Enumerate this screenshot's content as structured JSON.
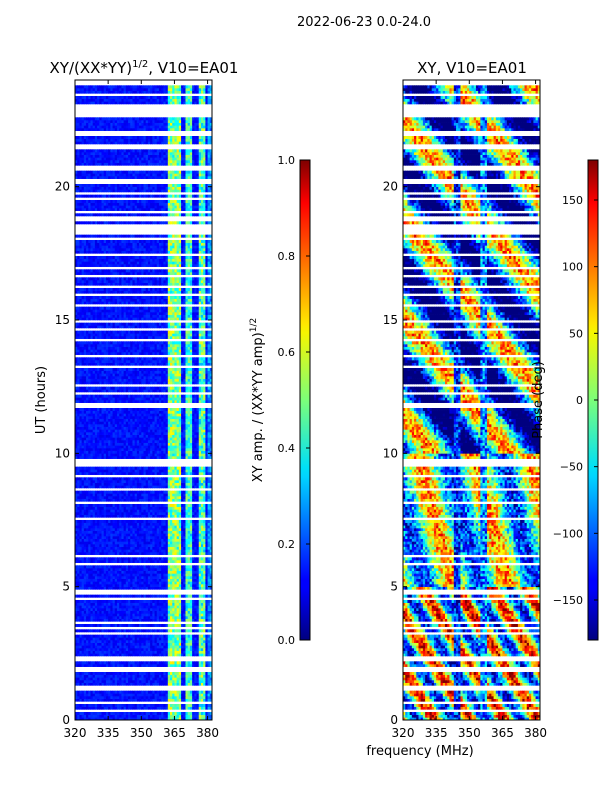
{
  "figure_title": "2022-06-23 0.0-24.0",
  "xlabel_shared": "frequency (MHz)",
  "chart_data": [
    {
      "type": "heatmap",
      "title": "XY/(XX*YY)^{1/2}, V10=EA01",
      "title_main": "XY/(XX*YY)",
      "title_sup": "1/2",
      "title_tail": ", V10=EA01",
      "xlabel": "",
      "ylabel": "UT (hours)",
      "xlim": [
        320,
        382
      ],
      "ylim": [
        0,
        24
      ],
      "xticks": [
        "320",
        "335",
        "350",
        "365",
        "380"
      ],
      "yticks": [
        "0",
        "5",
        "10",
        "15",
        "20"
      ],
      "colorbar": {
        "label": "XY amp. / (XX*YY amp)^{1/2}",
        "label_main": "XY amp. / (XX*YY amp)",
        "label_sup": "1/2",
        "range": [
          0.0,
          1.0
        ],
        "ticks": [
          "0.0",
          "0.2",
          "0.4",
          "0.6",
          "0.8",
          "1.0"
        ]
      },
      "colormap": "jet"
    },
    {
      "type": "heatmap",
      "title": "XY, V10=EA01",
      "xlabel": "frequency (MHz)",
      "ylabel": "",
      "xlim": [
        320,
        382
      ],
      "ylim": [
        0,
        24
      ],
      "xticks": [
        "320",
        "335",
        "350",
        "365",
        "380"
      ],
      "yticks": [
        "0",
        "5",
        "10",
        "15",
        "20"
      ],
      "colorbar": {
        "label": "Phase (deg)",
        "range": [
          -180,
          180
        ],
        "ticks": [
          "-150",
          "-100",
          "-50",
          "0",
          "50",
          "100",
          "150"
        ]
      },
      "colormap": "jet"
    }
  ],
  "flagged_time_gaps_hours": [
    [
      0.3,
      0.4
    ],
    [
      0.6,
      0.7
    ],
    [
      1.1,
      1.3
    ],
    [
      1.8,
      2.0
    ],
    [
      2.2,
      2.4
    ],
    [
      3.2,
      3.3
    ],
    [
      3.4,
      3.5
    ],
    [
      3.6,
      3.7
    ],
    [
      4.5,
      4.6
    ],
    [
      4.7,
      4.9
    ],
    [
      5.0,
      5.05
    ],
    [
      5.85,
      5.9
    ],
    [
      6.1,
      6.2
    ],
    [
      7.0,
      7.05
    ],
    [
      7.5,
      7.6
    ],
    [
      8.1,
      8.2
    ],
    [
      8.6,
      8.7
    ],
    [
      9.1,
      9.2
    ],
    [
      9.5,
      9.8
    ],
    [
      10.0,
      10.05
    ],
    [
      11.7,
      11.9
    ],
    [
      12.2,
      12.3
    ],
    [
      12.5,
      12.6
    ],
    [
      13.2,
      13.3
    ],
    [
      13.6,
      13.7
    ],
    [
      14.2,
      14.3
    ],
    [
      14.6,
      14.7
    ],
    [
      14.9,
      15.05
    ],
    [
      15.5,
      15.6
    ],
    [
      15.9,
      16.0
    ],
    [
      16.2,
      16.3
    ],
    [
      16.6,
      16.7
    ],
    [
      16.9,
      17.0
    ],
    [
      17.4,
      17.5
    ],
    [
      17.8,
      17.85
    ],
    [
      18.0,
      18.1
    ],
    [
      18.2,
      18.6
    ],
    [
      18.7,
      18.9
    ],
    [
      19.05,
      19.1
    ],
    [
      19.5,
      19.6
    ],
    [
      19.75,
      19.85
    ],
    [
      20.1,
      20.3
    ],
    [
      20.6,
      20.8
    ],
    [
      21.4,
      21.6
    ],
    [
      21.9,
      22.1
    ],
    [
      22.6,
      23.1
    ],
    [
      23.4,
      23.5
    ],
    [
      23.8,
      24.0
    ]
  ]
}
